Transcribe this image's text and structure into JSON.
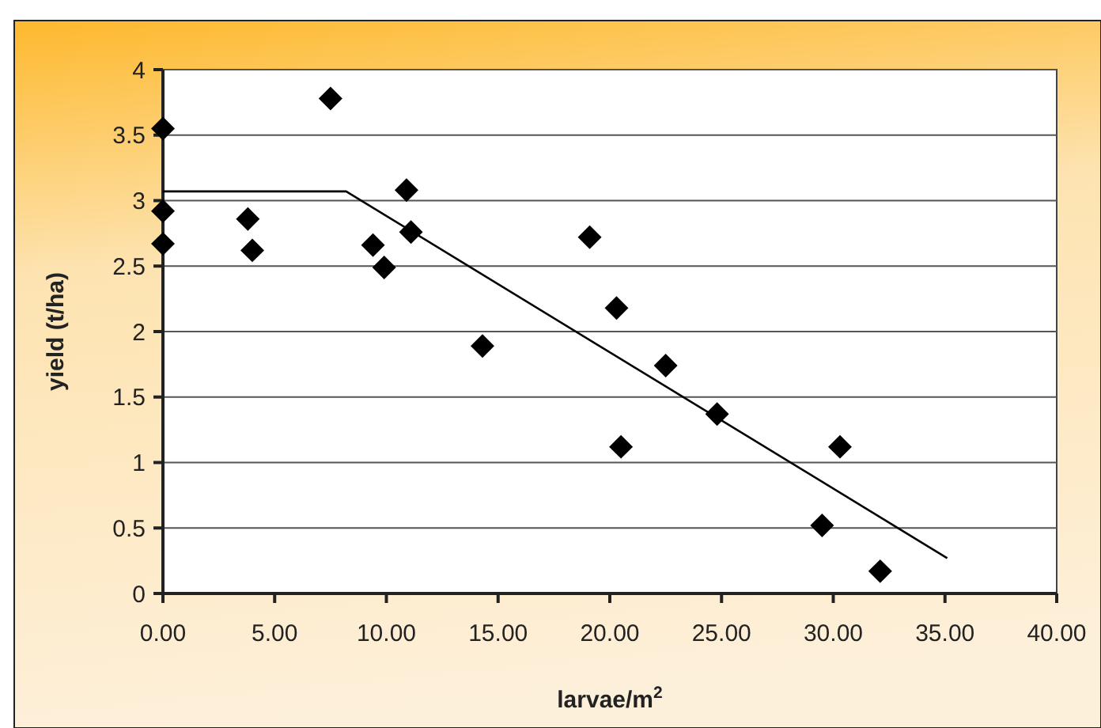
{
  "chart_data": {
    "type": "scatter",
    "xlabel": "larvae/m$^{2}$",
    "ylabel": "yield (t/ha)",
    "xlim": [
      0,
      40
    ],
    "ylim": [
      0,
      4
    ],
    "xticks": [
      {
        "value": 0,
        "label": "0.00"
      },
      {
        "value": 5,
        "label": "5.00"
      },
      {
        "value": 10,
        "label": "10.00"
      },
      {
        "value": 15,
        "label": "15.00"
      },
      {
        "value": 20,
        "label": "20.00"
      },
      {
        "value": 25,
        "label": "25.00"
      },
      {
        "value": 30,
        "label": "30.00"
      },
      {
        "value": 35,
        "label": "35.00"
      },
      {
        "value": 40,
        "label": "40.00"
      }
    ],
    "yticks": [
      0,
      0.5,
      1,
      1.5,
      2,
      2.5,
      3,
      3.5,
      4
    ],
    "grid": "y",
    "series": [
      {
        "color": "#000000",
        "marker": "diamond",
        "x": [
          0,
          0,
          0,
          3.8,
          4,
          7.5,
          9.4,
          9.9,
          10.9,
          11.1,
          14.3,
          19.1,
          20.3,
          20.5,
          22.5,
          24.8,
          29.5,
          30.3,
          32.1
        ],
        "values": [
          3.55,
          2.92,
          2.67,
          2.86,
          2.62,
          3.78,
          2.66,
          2.49,
          3.08,
          2.76,
          1.89,
          2.72,
          2.18,
          1.12,
          1.74,
          1.37,
          0.52,
          1.12,
          0.17
        ]
      },
      {
        "type": "line",
        "color": "#000000",
        "marker": "none",
        "line_style": "solid",
        "x": [
          0,
          8.2,
          35.1
        ],
        "values": [
          3.07,
          3.07,
          0.27
        ]
      }
    ]
  }
}
